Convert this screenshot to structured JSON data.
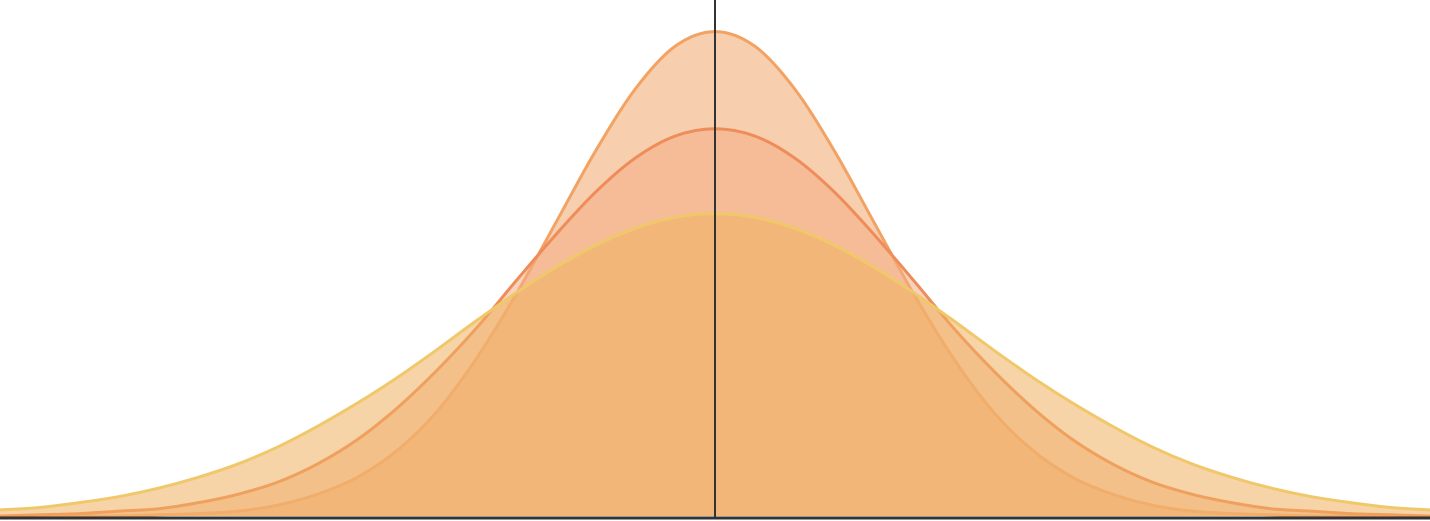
{
  "chart_data": {
    "type": "area",
    "x": [
      -4.5,
      -4.25,
      -4,
      -3.75,
      -3.5,
      -3.25,
      -3,
      -2.75,
      -2.5,
      -2.25,
      -2,
      -1.75,
      -1.5,
      -1.25,
      -1,
      -0.75,
      -0.5,
      -0.25,
      0,
      0.25,
      0.5,
      0.75,
      1,
      1.25,
      1.5,
      1.75,
      2,
      2.25,
      2.5,
      2.75,
      3,
      3.25,
      3.5,
      3.75,
      4,
      4.25,
      4.5
    ],
    "xlim": [
      -4.5,
      4.5
    ],
    "ylim": [
      0,
      0.425
    ],
    "series": [
      {
        "color": "#f2a262",
        "fill": "#f8cfae",
        "values": [
          0,
          0,
          0,
          0,
          0.001,
          0.002,
          0.004,
          0.009,
          0.018,
          0.032,
          0.054,
          0.086,
          0.13,
          0.183,
          0.242,
          0.301,
          0.352,
          0.387,
          0.399,
          0.387,
          0.352,
          0.301,
          0.242,
          0.183,
          0.13,
          0.086,
          0.054,
          0.032,
          0.018,
          0.009,
          0.004,
          0.002,
          0.001,
          0,
          0,
          0,
          0
        ]
      },
      {
        "color": "#ee8c5a",
        "fill": "#f2ad85",
        "values": [
          0,
          0.001,
          0.002,
          0.004,
          0.006,
          0.011,
          0.018,
          0.028,
          0.043,
          0.063,
          0.089,
          0.12,
          0.155,
          0.194,
          0.232,
          0.267,
          0.295,
          0.313,
          0.319,
          0.313,
          0.295,
          0.267,
          0.232,
          0.194,
          0.155,
          0.12,
          0.089,
          0.063,
          0.043,
          0.028,
          0.018,
          0.011,
          0.006,
          0.004,
          0.002,
          0.001,
          0
        ]
      },
      {
        "color": "#f0c86a",
        "fill": "#f0b060",
        "values": [
          0.005,
          0.007,
          0.011,
          0.016,
          0.023,
          0.032,
          0.043,
          0.057,
          0.074,
          0.093,
          0.114,
          0.137,
          0.161,
          0.184,
          0.205,
          0.223,
          0.237,
          0.246,
          0.249,
          0.246,
          0.237,
          0.223,
          0.205,
          0.184,
          0.161,
          0.137,
          0.114,
          0.093,
          0.074,
          0.057,
          0.043,
          0.032,
          0.023,
          0.016,
          0.011,
          0.007,
          0.005
        ]
      }
    ]
  }
}
